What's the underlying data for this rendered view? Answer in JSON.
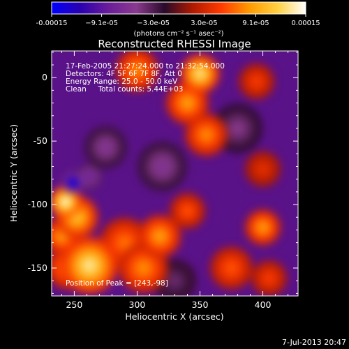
{
  "chart_data": {
    "type": "heatmap",
    "title": "Reconstructed RHESSI Image",
    "xlabel": "Heliocentric X (arcsec)",
    "ylabel": "Heliocentric Y (arcsec)",
    "xlim": [
      232,
      428
    ],
    "ylim": [
      -172,
      21
    ],
    "x_ticks": [
      250,
      300,
      350,
      400
    ],
    "y_ticks": [
      0,
      -50,
      -100,
      -150
    ],
    "colorbar": {
      "range": [
        -0.00015,
        0.00015
      ],
      "tick_values": [
        -0.00015,
        -9.1e-05,
        -3e-05,
        3e-05,
        9.1e-05,
        0.00015
      ],
      "tick_labels": [
        "-0.00015",
        "−9.1e-05",
        "−3.0e-05",
        "3.0e-05",
        "9.1e-05",
        "0.00015"
      ],
      "units": "(photons cm⁻² s⁻¹ asec⁻²)",
      "colors": [
        "#0000ff",
        "#2a00b0",
        "#6a1c9a",
        "#8a3a8e",
        "#2a0a2a",
        "#b01a00",
        "#ff3a00",
        "#ff9a00",
        "#ffd040",
        "#ffffff"
      ]
    },
    "annotations": [
      "17-Feb-2005 21:27:24.000 to 21:32:54.000",
      "Detectors: 4F 5F 6F 7F 8F, Att 0",
      "Energy Range: 25.0 - 50.0 keV",
      "Clean     Total counts: 5.44E+03",
      "Position of Peak = [243,-98]"
    ],
    "peak": {
      "x": 243,
      "y": -98
    },
    "blobs": [
      {
        "x": 243,
        "y": -98,
        "v": 0.00015,
        "s": 9
      },
      {
        "x": 252,
        "y": -110,
        "v": 0.00011,
        "s": 12
      },
      {
        "x": 262,
        "y": -148,
        "v": 0.00013,
        "s": 16
      },
      {
        "x": 245,
        "y": -150,
        "v": 8e-05,
        "s": 12
      },
      {
        "x": 290,
        "y": -130,
        "v": 7e-05,
        "s": 14
      },
      {
        "x": 240,
        "y": -125,
        "v": 9e-05,
        "s": 10
      },
      {
        "x": 350,
        "y": 3,
        "v": 0.00013,
        "s": 11
      },
      {
        "x": 340,
        "y": -20,
        "v": 9e-05,
        "s": 12
      },
      {
        "x": 355,
        "y": -45,
        "v": 8e-05,
        "s": 12
      },
      {
        "x": 300,
        "y": 6,
        "v": 8e-05,
        "s": 12
      },
      {
        "x": 395,
        "y": -3,
        "v": 5e-05,
        "s": 10
      },
      {
        "x": 400,
        "y": -118,
        "v": 9e-05,
        "s": 10
      },
      {
        "x": 318,
        "y": -125,
        "v": 9e-05,
        "s": 12
      },
      {
        "x": 305,
        "y": -150,
        "v": 8e-05,
        "s": 14
      },
      {
        "x": 340,
        "y": -105,
        "v": 6e-05,
        "s": 10
      },
      {
        "x": 375,
        "y": -150,
        "v": 6e-05,
        "s": 12
      },
      {
        "x": 405,
        "y": -158,
        "v": 5e-05,
        "s": 10
      },
      {
        "x": 400,
        "y": -72,
        "v": 4e-05,
        "s": 10
      },
      {
        "x": 249,
        "y": -83,
        "v": -0.00016,
        "s": 6
      },
      {
        "x": 262,
        "y": -78,
        "v": -9e-05,
        "s": 7
      },
      {
        "x": 275,
        "y": -55,
        "v": -6e-05,
        "s": 12
      },
      {
        "x": 320,
        "y": -70,
        "v": -6e-05,
        "s": 14
      },
      {
        "x": 380,
        "y": -40,
        "v": -5e-05,
        "s": 14
      },
      {
        "x": 330,
        "y": -160,
        "v": -4e-05,
        "s": 12
      }
    ]
  },
  "footer": {
    "timestamp": "7-Jul-2013 20:47"
  }
}
